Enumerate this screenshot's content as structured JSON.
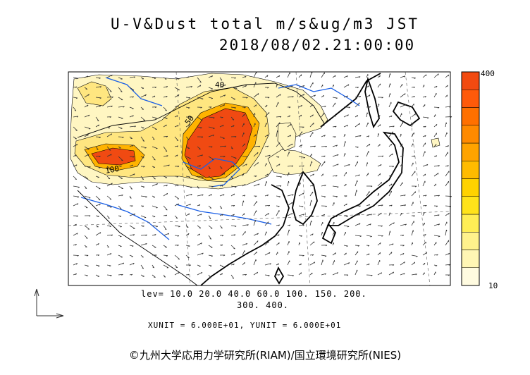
{
  "title": {
    "line1": "U-V&Dust total m/s&ug/m3 JST",
    "line2": "2018/08/02.21:00:00"
  },
  "contour_labels": [
    "40",
    "50",
    "100"
  ],
  "legend": {
    "max_label": "400",
    "min_label": "10",
    "colors": [
      "#fffbe0",
      "#fff6b4",
      "#fff28c",
      "#ffee55",
      "#ffe31a",
      "#ffd200",
      "#ffbb00",
      "#ffa300",
      "#ff8a00",
      "#ff7000",
      "#ff5a0a",
      "#f24a10"
    ]
  },
  "levels": {
    "line1": "lev= 10.0 20.0 40.0 60.0 100. 150. 200.",
    "line2": "300. 400."
  },
  "units": "XUNIT = 6.000E+01, YUNIT = 6.000E+01",
  "copyright": "©九州大学応用力学研究所(RIAM)/国立環境研究所(NIES)"
}
